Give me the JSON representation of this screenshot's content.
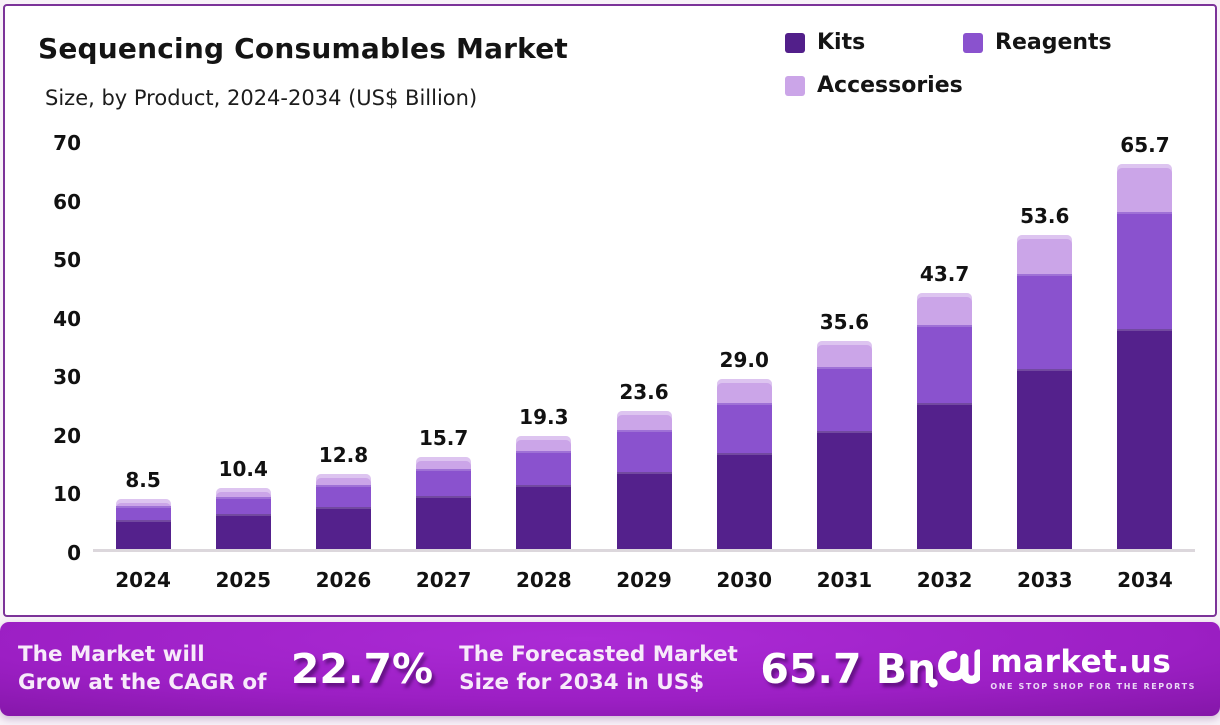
{
  "header": {
    "title": "Sequencing Consumables Market",
    "subtitle": "Size, by Product, 2024-2034 (US$ Billion)"
  },
  "legend": [
    {
      "label": "Kits",
      "color": "#521F8A"
    },
    {
      "label": "Reagents",
      "color": "#8A52CE"
    },
    {
      "label": "Accessories",
      "color": "#CBA5E8"
    }
  ],
  "chart_data": {
    "type": "bar",
    "stacked": true,
    "title": "Sequencing Consumables Market Size, by Product, 2024-2034 (US$ Billion)",
    "categories": [
      "2024",
      "2025",
      "2026",
      "2027",
      "2028",
      "2029",
      "2030",
      "2031",
      "2032",
      "2033",
      "2034"
    ],
    "series": [
      {
        "name": "Kits",
        "color": "#54218C",
        "values": [
          4.9,
          5.9,
          7.2,
          9.0,
          11.0,
          13.2,
          16.4,
          20.1,
          24.9,
          30.7,
          37.6
        ]
      },
      {
        "name": "Reagents",
        "color": "#8A52CE",
        "values": [
          2.4,
          2.9,
          3.7,
          4.6,
          5.7,
          7.1,
          8.5,
          10.9,
          13.4,
          16.2,
          20.0
        ]
      },
      {
        "name": "Accessories",
        "color": "#CBA5E8",
        "values": [
          1.2,
          1.6,
          1.9,
          2.1,
          2.6,
          3.3,
          4.1,
          4.6,
          5.4,
          6.7,
          8.1
        ]
      }
    ],
    "totals": [
      "8.5",
      "10.4",
      "12.8",
      "15.7",
      "19.3",
      "23.6",
      "29.0",
      "35.6",
      "43.7",
      "53.6",
      "65.7"
    ],
    "xlabel": "",
    "ylabel": "",
    "ylim": [
      0,
      70
    ],
    "yticks": [
      0,
      10,
      20,
      30,
      40,
      50,
      60,
      70
    ],
    "grid": false,
    "legend_position": "top-right"
  },
  "footer": {
    "cagr_label": "The Market will Grow at the CAGR of",
    "cagr_value": "22.7%",
    "forecast_label": "The Forecasted Market Size for 2034 in US$",
    "forecast_value": "65.7 Bn",
    "brand": {
      "name": "market.us",
      "tagline": "ONE STOP SHOP FOR THE REPORTS"
    }
  }
}
